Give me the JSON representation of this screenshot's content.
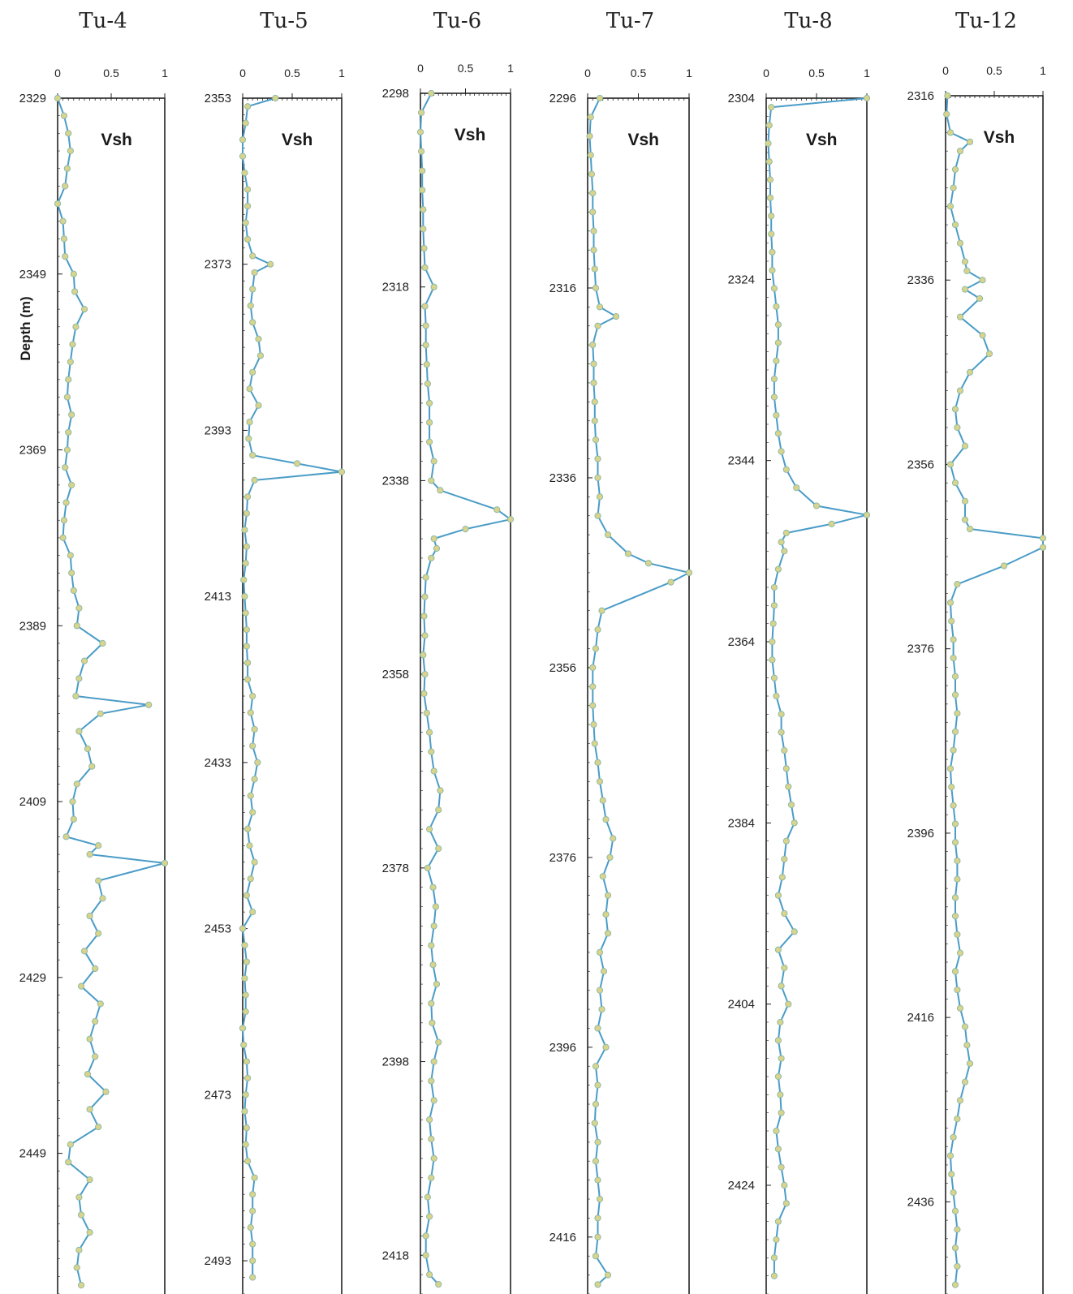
{
  "chart_data": {
    "type": "line",
    "ylabel": "Depth (m)",
    "colors": {
      "line": "#4a9cc7",
      "marker_fill": "#d9d48c",
      "marker_stroke": "#8fb9a6",
      "frame": "#222222"
    },
    "x_ticks": [
      "0",
      "0.5",
      "1"
    ],
    "xlim": [
      0,
      1
    ],
    "wells": [
      {
        "name": "Tu-4",
        "series_name": "Vsh",
        "ylim": [
          2329,
          2465
        ],
        "y_ticks": [
          "2329",
          "2349",
          "2369",
          "2389",
          "2409",
          "2429",
          "2449"
        ],
        "depth": [
          2329,
          2331,
          2333,
          2335,
          2337,
          2339,
          2341,
          2343,
          2345,
          2347,
          2349,
          2351,
          2353,
          2355,
          2357,
          2359,
          2361,
          2363,
          2365,
          2367,
          2369,
          2371,
          2373,
          2375,
          2377,
          2379,
          2381,
          2383,
          2385,
          2387,
          2389,
          2391,
          2393,
          2395,
          2397,
          2398,
          2399,
          2401,
          2403,
          2405,
          2407,
          2409,
          2411,
          2413,
          2414,
          2415,
          2416,
          2418,
          2420,
          2422,
          2424,
          2426,
          2428,
          2430,
          2432,
          2434,
          2436,
          2438,
          2440,
          2442,
          2444,
          2446,
          2448,
          2450,
          2452,
          2454,
          2456,
          2458,
          2460,
          2462,
          2464
        ],
        "vsh": [
          0.0,
          0.06,
          0.1,
          0.12,
          0.09,
          0.07,
          0.0,
          0.05,
          0.06,
          0.07,
          0.15,
          0.16,
          0.25,
          0.17,
          0.14,
          0.12,
          0.1,
          0.09,
          0.13,
          0.1,
          0.09,
          0.07,
          0.13,
          0.08,
          0.06,
          0.05,
          0.12,
          0.13,
          0.15,
          0.2,
          0.18,
          0.42,
          0.25,
          0.2,
          0.17,
          0.85,
          0.4,
          0.2,
          0.28,
          0.32,
          0.18,
          0.14,
          0.15,
          0.08,
          0.38,
          0.3,
          1.0,
          0.38,
          0.42,
          0.3,
          0.38,
          0.25,
          0.35,
          0.22,
          0.4,
          0.35,
          0.3,
          0.35,
          0.28,
          0.45,
          0.3,
          0.38,
          0.12,
          0.1,
          0.3,
          0.2,
          0.22,
          0.3,
          0.2,
          0.18,
          0.22
        ]
      },
      {
        "name": "Tu-5",
        "series_name": "Vsh",
        "ylim": [
          2353,
          2497
        ],
        "y_ticks": [
          "2353",
          "2373",
          "2393",
          "2413",
          "2433",
          "2453",
          "2473",
          "2493"
        ],
        "depth": [
          2353,
          2354,
          2356,
          2358,
          2360,
          2362,
          2364,
          2366,
          2368,
          2370,
          2372,
          2373,
          2374,
          2376,
          2378,
          2380,
          2382,
          2384,
          2386,
          2388,
          2390,
          2392,
          2394,
          2396,
          2397,
          2398,
          2399,
          2401,
          2403,
          2405,
          2407,
          2409,
          2411,
          2413,
          2415,
          2417,
          2419,
          2421,
          2423,
          2425,
          2427,
          2429,
          2431,
          2433,
          2435,
          2437,
          2439,
          2441,
          2443,
          2445,
          2447,
          2449,
          2451,
          2453,
          2455,
          2457,
          2459,
          2461,
          2463,
          2465,
          2467,
          2469,
          2471,
          2473,
          2475,
          2477,
          2479,
          2481,
          2483,
          2485,
          2487,
          2489,
          2491,
          2493,
          2495
        ],
        "vsh": [
          0.33,
          0.05,
          0.03,
          0.0,
          0.0,
          0.02,
          0.05,
          0.05,
          0.03,
          0.05,
          0.1,
          0.28,
          0.12,
          0.1,
          0.08,
          0.1,
          0.16,
          0.18,
          0.1,
          0.07,
          0.16,
          0.07,
          0.06,
          0.1,
          0.55,
          1.0,
          0.12,
          0.05,
          0.04,
          0.02,
          0.04,
          0.03,
          0.01,
          0.02,
          0.03,
          0.04,
          0.04,
          0.05,
          0.05,
          0.1,
          0.08,
          0.12,
          0.1,
          0.15,
          0.12,
          0.08,
          0.1,
          0.05,
          0.07,
          0.12,
          0.08,
          0.04,
          0.1,
          0.0,
          0.02,
          0.04,
          0.02,
          0.03,
          0.03,
          0.0,
          0.01,
          0.04,
          0.05,
          0.03,
          0.02,
          0.04,
          0.03,
          0.05,
          0.12,
          0.1,
          0.1,
          0.08,
          0.1,
          0.1,
          0.1
        ]
      },
      {
        "name": "Tu-6",
        "series_name": "Vsh",
        "ylim": [
          2298,
          2422
        ],
        "y_ticks": [
          "2298",
          "2318",
          "2338",
          "2358",
          "2378",
          "2398",
          "2418"
        ],
        "depth": [
          2298,
          2300,
          2302,
          2304,
          2306,
          2308,
          2310,
          2312,
          2314,
          2316,
          2318,
          2320,
          2322,
          2324,
          2326,
          2328,
          2330,
          2332,
          2334,
          2336,
          2338,
          2339,
          2341,
          2342,
          2343,
          2344,
          2345,
          2346,
          2348,
          2350,
          2352,
          2354,
          2356,
          2358,
          2360,
          2362,
          2364,
          2366,
          2368,
          2370,
          2372,
          2374,
          2376,
          2378,
          2380,
          2382,
          2384,
          2386,
          2388,
          2390,
          2392,
          2394,
          2396,
          2398,
          2400,
          2402,
          2404,
          2406,
          2408,
          2410,
          2412,
          2414,
          2416,
          2418,
          2420,
          2421
        ],
        "vsh": [
          0.12,
          0.01,
          0.0,
          0.01,
          0.02,
          0.02,
          0.03,
          0.03,
          0.04,
          0.05,
          0.15,
          0.05,
          0.06,
          0.06,
          0.07,
          0.08,
          0.1,
          0.1,
          0.1,
          0.15,
          0.12,
          0.22,
          0.85,
          1.0,
          0.5,
          0.15,
          0.18,
          0.12,
          0.06,
          0.05,
          0.04,
          0.05,
          0.03,
          0.05,
          0.04,
          0.07,
          0.1,
          0.12,
          0.15,
          0.22,
          0.2,
          0.1,
          0.2,
          0.08,
          0.14,
          0.17,
          0.15,
          0.12,
          0.14,
          0.18,
          0.12,
          0.13,
          0.2,
          0.15,
          0.12,
          0.15,
          0.1,
          0.12,
          0.15,
          0.12,
          0.08,
          0.1,
          0.06,
          0.06,
          0.1,
          0.2
        ]
      },
      {
        "name": "Tu-7",
        "series_name": "Vsh",
        "ylim": [
          2296,
          2422
        ],
        "y_ticks": [
          "2296",
          "2316",
          "2336",
          "2356",
          "2376",
          "2396",
          "2416"
        ],
        "depth": [
          2296,
          2298,
          2300,
          2302,
          2304,
          2306,
          2308,
          2310,
          2312,
          2314,
          2316,
          2318,
          2319,
          2320,
          2322,
          2324,
          2326,
          2328,
          2330,
          2332,
          2334,
          2336,
          2338,
          2340,
          2342,
          2344,
          2345,
          2346,
          2347,
          2350,
          2352,
          2354,
          2356,
          2358,
          2360,
          2362,
          2364,
          2366,
          2368,
          2370,
          2372,
          2374,
          2376,
          2378,
          2380,
          2382,
          2384,
          2386,
          2388,
          2390,
          2392,
          2394,
          2396,
          2398,
          2400,
          2402,
          2404,
          2406,
          2408,
          2410,
          2412,
          2414,
          2416,
          2418,
          2420,
          2421
        ],
        "vsh": [
          0.12,
          0.03,
          0.02,
          0.03,
          0.04,
          0.05,
          0.05,
          0.06,
          0.06,
          0.07,
          0.08,
          0.12,
          0.28,
          0.1,
          0.05,
          0.06,
          0.06,
          0.07,
          0.07,
          0.08,
          0.1,
          0.1,
          0.12,
          0.1,
          0.2,
          0.4,
          0.6,
          1.0,
          0.82,
          0.14,
          0.1,
          0.08,
          0.05,
          0.05,
          0.05,
          0.06,
          0.07,
          0.1,
          0.12,
          0.15,
          0.18,
          0.25,
          0.22,
          0.15,
          0.2,
          0.18,
          0.2,
          0.12,
          0.16,
          0.12,
          0.14,
          0.1,
          0.18,
          0.08,
          0.1,
          0.08,
          0.07,
          0.1,
          0.08,
          0.1,
          0.12,
          0.1,
          0.1,
          0.08,
          0.2,
          0.1
        ]
      },
      {
        "name": "Tu-8",
        "series_name": "Vsh",
        "ylim": [
          2304,
          2436
        ],
        "y_ticks": [
          "2304",
          "2324",
          "2344",
          "2364",
          "2384",
          "2404",
          "2424"
        ],
        "depth": [
          2304,
          2305,
          2307,
          2309,
          2311,
          2313,
          2315,
          2317,
          2319,
          2321,
          2323,
          2325,
          2327,
          2329,
          2331,
          2333,
          2335,
          2337,
          2339,
          2341,
          2343,
          2345,
          2347,
          2349,
          2350,
          2351,
          2352,
          2353,
          2354,
          2356,
          2358,
          2360,
          2362,
          2364,
          2366,
          2368,
          2370,
          2372,
          2374,
          2376,
          2378,
          2380,
          2382,
          2384,
          2386,
          2388,
          2390,
          2392,
          2394,
          2396,
          2398,
          2400,
          2402,
          2404,
          2406,
          2408,
          2410,
          2412,
          2414,
          2416,
          2418,
          2420,
          2422,
          2424,
          2426,
          2428,
          2430,
          2432,
          2434
        ],
        "vsh": [
          1.0,
          0.05,
          0.03,
          0.02,
          0.03,
          0.04,
          0.04,
          0.05,
          0.05,
          0.06,
          0.06,
          0.08,
          0.1,
          0.12,
          0.12,
          0.1,
          0.08,
          0.08,
          0.1,
          0.12,
          0.15,
          0.2,
          0.3,
          0.5,
          1.0,
          0.65,
          0.2,
          0.15,
          0.18,
          0.12,
          0.08,
          0.08,
          0.07,
          0.06,
          0.06,
          0.08,
          0.1,
          0.15,
          0.15,
          0.18,
          0.2,
          0.22,
          0.25,
          0.28,
          0.2,
          0.18,
          0.16,
          0.12,
          0.18,
          0.28,
          0.12,
          0.18,
          0.15,
          0.22,
          0.14,
          0.12,
          0.15,
          0.12,
          0.14,
          0.15,
          0.1,
          0.12,
          0.15,
          0.18,
          0.2,
          0.12,
          0.1,
          0.08,
          0.08
        ]
      },
      {
        "name": "Tu-12",
        "series_name": "Vsh",
        "ylim": [
          2316,
          2446
        ],
        "y_ticks": [
          "2316",
          "2336",
          "2356",
          "2376",
          "2396",
          "2416",
          "2436"
        ],
        "depth": [
          2316,
          2318,
          2320,
          2321,
          2322,
          2324,
          2326,
          2328,
          2330,
          2332,
          2334,
          2335,
          2336,
          2337,
          2338,
          2340,
          2342,
          2344,
          2346,
          2348,
          2350,
          2352,
          2354,
          2356,
          2358,
          2360,
          2362,
          2363,
          2364,
          2365,
          2367,
          2369,
          2371,
          2373,
          2375,
          2377,
          2379,
          2381,
          2383,
          2385,
          2387,
          2389,
          2391,
          2393,
          2395,
          2397,
          2399,
          2401,
          2403,
          2405,
          2407,
          2409,
          2411,
          2413,
          2415,
          2417,
          2419,
          2421,
          2423,
          2425,
          2427,
          2429,
          2431,
          2433,
          2435,
          2437,
          2439,
          2441,
          2443,
          2445
        ],
        "vsh": [
          0.02,
          0.01,
          0.05,
          0.25,
          0.15,
          0.1,
          0.08,
          0.05,
          0.1,
          0.15,
          0.2,
          0.22,
          0.38,
          0.2,
          0.35,
          0.15,
          0.38,
          0.45,
          0.25,
          0.15,
          0.1,
          0.12,
          0.2,
          0.05,
          0.1,
          0.2,
          0.2,
          0.25,
          1.0,
          1.0,
          0.6,
          0.12,
          0.05,
          0.06,
          0.08,
          0.08,
          0.1,
          0.1,
          0.12,
          0.1,
          0.08,
          0.05,
          0.06,
          0.08,
          0.1,
          0.1,
          0.12,
          0.12,
          0.1,
          0.1,
          0.12,
          0.15,
          0.1,
          0.12,
          0.15,
          0.2,
          0.22,
          0.25,
          0.2,
          0.15,
          0.12,
          0.08,
          0.05,
          0.06,
          0.08,
          0.1,
          0.12,
          0.1,
          0.12,
          0.1
        ]
      }
    ]
  }
}
